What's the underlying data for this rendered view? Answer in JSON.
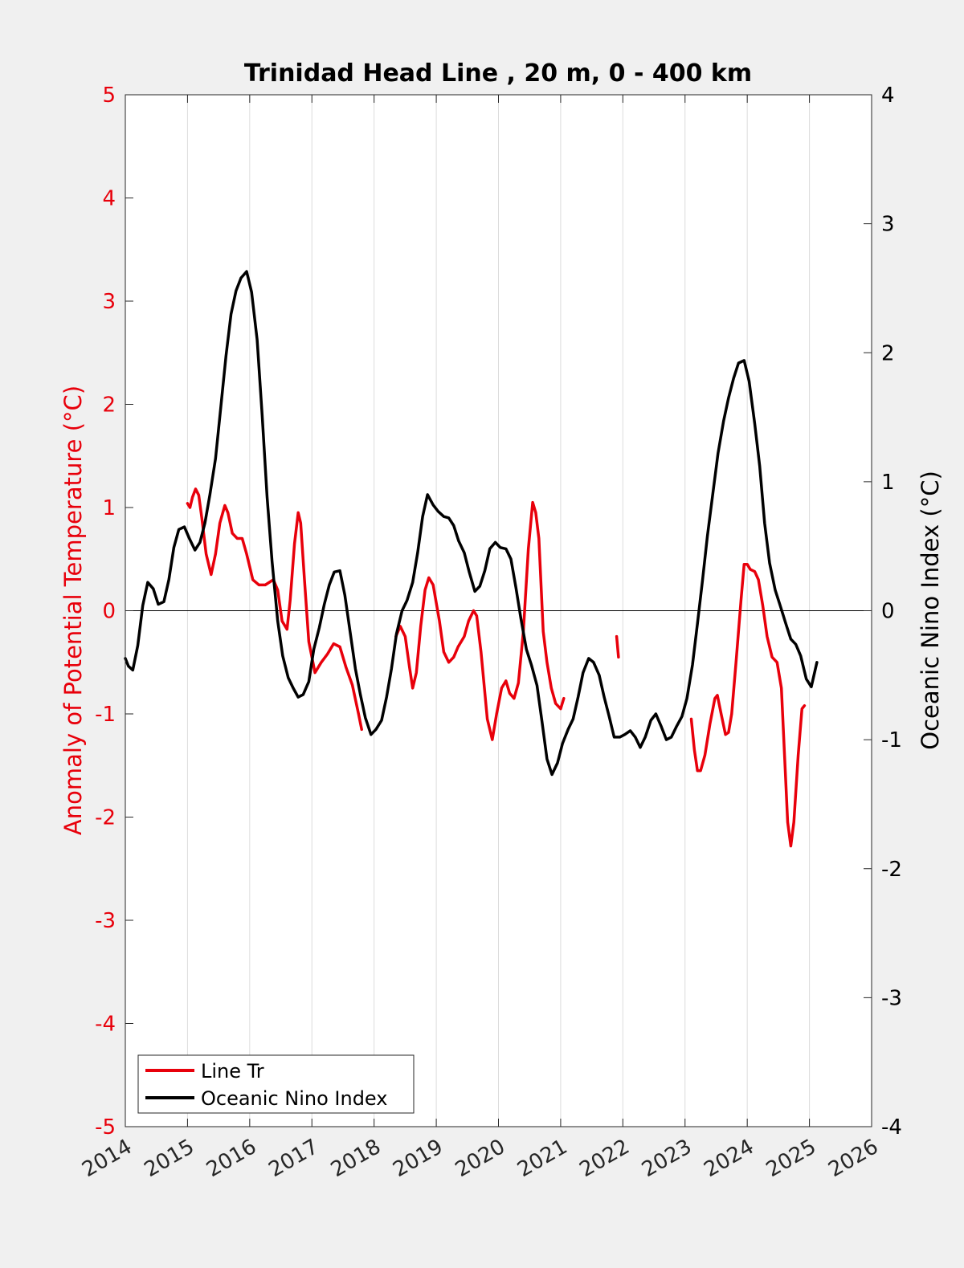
{
  "chart_data": {
    "type": "line",
    "title": "Trinidad Head Line , 20 m, 0 - 400 km",
    "xlabel": "",
    "ylabel_left": "Anomaly of Potential Temperature (°C)",
    "ylabel_right": "Oceanic Nino Index (°C)",
    "xlim": [
      2014,
      2026
    ],
    "ylim_left": [
      -5,
      5
    ],
    "ylim_right": [
      -4,
      4
    ],
    "x_ticks": [
      2014,
      2015,
      2016,
      2017,
      2018,
      2019,
      2020,
      2021,
      2022,
      2023,
      2024,
      2025,
      2026
    ],
    "y_ticks_left": [
      -5,
      -4,
      -3,
      -2,
      -1,
      0,
      1,
      2,
      3,
      4,
      5
    ],
    "y_ticks_right": [
      -4,
      -3,
      -2,
      -1,
      0,
      1,
      2,
      3,
      4
    ],
    "grid": "vertical",
    "zero_line": true,
    "legend_position": "bottom-left",
    "colors": {
      "line_tr": "#e8000b",
      "oni": "#000000",
      "left_axis": "#e8000b",
      "right_axis": "#000000"
    },
    "series": [
      {
        "name": "Line Tr",
        "axis": "left",
        "segments": [
          [
            [
              2015.0,
              1.04
            ],
            [
              2015.04,
              1.0
            ],
            [
              2015.08,
              1.1
            ],
            [
              2015.13,
              1.18
            ],
            [
              2015.18,
              1.12
            ],
            [
              2015.23,
              0.9
            ],
            [
              2015.3,
              0.55
            ],
            [
              2015.38,
              0.35
            ],
            [
              2015.45,
              0.55
            ],
            [
              2015.52,
              0.85
            ],
            [
              2015.6,
              1.02
            ],
            [
              2015.65,
              0.95
            ],
            [
              2015.72,
              0.75
            ],
            [
              2015.8,
              0.7
            ],
            [
              2015.88,
              0.7
            ],
            [
              2015.95,
              0.55
            ],
            [
              2016.05,
              0.3
            ],
            [
              2016.15,
              0.25
            ],
            [
              2016.25,
              0.25
            ],
            [
              2016.38,
              0.3
            ],
            [
              2016.45,
              0.2
            ],
            [
              2016.52,
              -0.1
            ],
            [
              2016.6,
              -0.18
            ],
            [
              2016.65,
              0.1
            ],
            [
              2016.72,
              0.65
            ],
            [
              2016.78,
              0.95
            ],
            [
              2016.82,
              0.85
            ],
            [
              2016.88,
              0.3
            ],
            [
              2016.95,
              -0.3
            ],
            [
              2017.05,
              -0.6
            ],
            [
              2017.15,
              -0.5
            ],
            [
              2017.25,
              -0.42
            ],
            [
              2017.35,
              -0.32
            ],
            [
              2017.45,
              -0.35
            ],
            [
              2017.55,
              -0.55
            ],
            [
              2017.65,
              -0.72
            ],
            [
              2017.75,
              -1.0
            ],
            [
              2017.8,
              -1.15
            ]
          ],
          [
            [
              2018.35,
              -0.25
            ],
            [
              2018.42,
              -0.15
            ],
            [
              2018.5,
              -0.25
            ],
            [
              2018.57,
              -0.55
            ],
            [
              2018.62,
              -0.75
            ],
            [
              2018.68,
              -0.6
            ],
            [
              2018.75,
              -0.15
            ],
            [
              2018.82,
              0.2
            ],
            [
              2018.88,
              0.32
            ],
            [
              2018.95,
              0.25
            ],
            [
              2019.05,
              -0.1
            ],
            [
              2019.12,
              -0.4
            ],
            [
              2019.2,
              -0.5
            ],
            [
              2019.28,
              -0.45
            ],
            [
              2019.35,
              -0.35
            ],
            [
              2019.45,
              -0.25
            ],
            [
              2019.52,
              -0.1
            ],
            [
              2019.6,
              0.0
            ],
            [
              2019.65,
              -0.05
            ],
            [
              2019.72,
              -0.4
            ],
            [
              2019.82,
              -1.05
            ],
            [
              2019.9,
              -1.25
            ],
            [
              2019.97,
              -1.0
            ],
            [
              2020.05,
              -0.75
            ],
            [
              2020.12,
              -0.68
            ],
            [
              2020.18,
              -0.8
            ],
            [
              2020.25,
              -0.85
            ],
            [
              2020.32,
              -0.7
            ],
            [
              2020.4,
              -0.2
            ],
            [
              2020.48,
              0.6
            ],
            [
              2020.55,
              1.05
            ],
            [
              2020.6,
              0.95
            ],
            [
              2020.65,
              0.7
            ],
            [
              2020.72,
              -0.2
            ],
            [
              2020.78,
              -0.5
            ],
            [
              2020.85,
              -0.75
            ],
            [
              2020.92,
              -0.9
            ],
            [
              2021.0,
              -0.95
            ],
            [
              2021.05,
              -0.85
            ]
          ],
          [
            [
              2021.9,
              -0.25
            ],
            [
              2021.93,
              -0.45
            ]
          ],
          [
            [
              2023.1,
              -1.05
            ],
            [
              2023.15,
              -1.35
            ],
            [
              2023.2,
              -1.55
            ],
            [
              2023.25,
              -1.55
            ],
            [
              2023.32,
              -1.4
            ],
            [
              2023.4,
              -1.1
            ],
            [
              2023.48,
              -0.85
            ],
            [
              2023.52,
              -0.82
            ],
            [
              2023.58,
              -1.0
            ],
            [
              2023.65,
              -1.2
            ],
            [
              2023.7,
              -1.18
            ],
            [
              2023.75,
              -1.0
            ],
            [
              2023.82,
              -0.5
            ],
            [
              2023.9,
              0.1
            ],
            [
              2023.95,
              0.45
            ],
            [
              2024.0,
              0.45
            ],
            [
              2024.05,
              0.4
            ],
            [
              2024.12,
              0.38
            ],
            [
              2024.18,
              0.3
            ],
            [
              2024.25,
              0.05
            ],
            [
              2024.32,
              -0.25
            ],
            [
              2024.4,
              -0.45
            ],
            [
              2024.48,
              -0.5
            ],
            [
              2024.55,
              -0.75
            ],
            [
              2024.6,
              -1.4
            ],
            [
              2024.65,
              -2.05
            ],
            [
              2024.7,
              -2.28
            ],
            [
              2024.75,
              -2.05
            ],
            [
              2024.82,
              -1.4
            ],
            [
              2024.88,
              -0.95
            ],
            [
              2024.92,
              -0.92
            ]
          ]
        ]
      },
      {
        "name": "Oceanic Nino Index",
        "axis": "right",
        "segments": [
          [
            [
              2014.0,
              -0.37
            ],
            [
              2014.05,
              -0.43
            ],
            [
              2014.12,
              -0.46
            ],
            [
              2014.2,
              -0.27
            ],
            [
              2014.28,
              0.04
            ],
            [
              2014.36,
              0.22
            ],
            [
              2014.45,
              0.17
            ],
            [
              2014.53,
              0.05
            ],
            [
              2014.62,
              0.07
            ],
            [
              2014.7,
              0.24
            ],
            [
              2014.78,
              0.49
            ],
            [
              2014.86,
              0.63
            ],
            [
              2014.95,
              0.65
            ],
            [
              2015.03,
              0.56
            ],
            [
              2015.12,
              0.47
            ],
            [
              2015.2,
              0.53
            ],
            [
              2015.28,
              0.68
            ],
            [
              2015.36,
              0.9
            ],
            [
              2015.45,
              1.18
            ],
            [
              2015.53,
              1.55
            ],
            [
              2015.62,
              1.98
            ],
            [
              2015.7,
              2.3
            ],
            [
              2015.78,
              2.48
            ],
            [
              2015.86,
              2.58
            ],
            [
              2015.95,
              2.63
            ],
            [
              2016.03,
              2.47
            ],
            [
              2016.12,
              2.1
            ],
            [
              2016.2,
              1.52
            ],
            [
              2016.28,
              0.88
            ],
            [
              2016.36,
              0.38
            ],
            [
              2016.45,
              -0.08
            ],
            [
              2016.53,
              -0.35
            ],
            [
              2016.62,
              -0.52
            ],
            [
              2016.7,
              -0.6
            ],
            [
              2016.78,
              -0.67
            ],
            [
              2016.86,
              -0.65
            ],
            [
              2016.95,
              -0.55
            ],
            [
              2017.03,
              -0.3
            ],
            [
              2017.12,
              -0.13
            ],
            [
              2017.2,
              0.05
            ],
            [
              2017.28,
              0.2
            ],
            [
              2017.36,
              0.3
            ],
            [
              2017.45,
              0.31
            ],
            [
              2017.53,
              0.12
            ],
            [
              2017.62,
              -0.18
            ],
            [
              2017.7,
              -0.45
            ],
            [
              2017.78,
              -0.65
            ],
            [
              2017.86,
              -0.83
            ],
            [
              2017.95,
              -0.96
            ],
            [
              2018.03,
              -0.92
            ],
            [
              2018.12,
              -0.85
            ],
            [
              2018.2,
              -0.67
            ],
            [
              2018.28,
              -0.45
            ],
            [
              2018.36,
              -0.18
            ],
            [
              2018.45,
              0.0
            ],
            [
              2018.53,
              0.08
            ],
            [
              2018.62,
              0.22
            ],
            [
              2018.7,
              0.45
            ],
            [
              2018.78,
              0.73
            ],
            [
              2018.86,
              0.9
            ],
            [
              2018.95,
              0.82
            ],
            [
              2019.03,
              0.77
            ],
            [
              2019.12,
              0.73
            ],
            [
              2019.2,
              0.72
            ],
            [
              2019.28,
              0.66
            ],
            [
              2019.36,
              0.54
            ],
            [
              2019.45,
              0.45
            ],
            [
              2019.53,
              0.3
            ],
            [
              2019.62,
              0.15
            ],
            [
              2019.7,
              0.19
            ],
            [
              2019.78,
              0.31
            ],
            [
              2019.86,
              0.48
            ],
            [
              2019.95,
              0.53
            ],
            [
              2020.03,
              0.49
            ],
            [
              2020.12,
              0.48
            ],
            [
              2020.2,
              0.4
            ],
            [
              2020.28,
              0.18
            ],
            [
              2020.36,
              -0.06
            ],
            [
              2020.45,
              -0.3
            ],
            [
              2020.53,
              -0.42
            ],
            [
              2020.62,
              -0.58
            ],
            [
              2020.7,
              -0.86
            ],
            [
              2020.78,
              -1.15
            ],
            [
              2020.86,
              -1.27
            ],
            [
              2020.95,
              -1.18
            ],
            [
              2021.03,
              -1.03
            ],
            [
              2021.12,
              -0.92
            ],
            [
              2021.2,
              -0.84
            ],
            [
              2021.28,
              -0.67
            ],
            [
              2021.36,
              -0.48
            ],
            [
              2021.45,
              -0.37
            ],
            [
              2021.53,
              -0.4
            ],
            [
              2021.62,
              -0.5
            ],
            [
              2021.7,
              -0.67
            ],
            [
              2021.78,
              -0.82
            ],
            [
              2021.86,
              -0.98
            ],
            [
              2021.95,
              -0.98
            ],
            [
              2022.03,
              -0.96
            ],
            [
              2022.12,
              -0.93
            ],
            [
              2022.2,
              -0.98
            ],
            [
              2022.28,
              -1.06
            ],
            [
              2022.36,
              -0.98
            ],
            [
              2022.45,
              -0.85
            ],
            [
              2022.53,
              -0.8
            ],
            [
              2022.62,
              -0.9
            ],
            [
              2022.7,
              -1.0
            ],
            [
              2022.78,
              -0.98
            ],
            [
              2022.86,
              -0.9
            ],
            [
              2022.95,
              -0.82
            ],
            [
              2023.03,
              -0.68
            ],
            [
              2023.12,
              -0.42
            ],
            [
              2023.2,
              -0.1
            ],
            [
              2023.28,
              0.23
            ],
            [
              2023.36,
              0.58
            ],
            [
              2023.45,
              0.92
            ],
            [
              2023.53,
              1.22
            ],
            [
              2023.62,
              1.47
            ],
            [
              2023.7,
              1.65
            ],
            [
              2023.78,
              1.8
            ],
            [
              2023.86,
              1.92
            ],
            [
              2023.95,
              1.94
            ],
            [
              2024.03,
              1.78
            ],
            [
              2024.12,
              1.45
            ],
            [
              2024.2,
              1.12
            ],
            [
              2024.28,
              0.68
            ],
            [
              2024.36,
              0.37
            ],
            [
              2024.45,
              0.16
            ],
            [
              2024.53,
              0.04
            ],
            [
              2024.62,
              -0.1
            ],
            [
              2024.7,
              -0.22
            ],
            [
              2024.78,
              -0.26
            ],
            [
              2024.86,
              -0.35
            ],
            [
              2024.95,
              -0.53
            ],
            [
              2025.03,
              -0.59
            ],
            [
              2025.12,
              -0.4
            ]
          ]
        ]
      }
    ]
  }
}
